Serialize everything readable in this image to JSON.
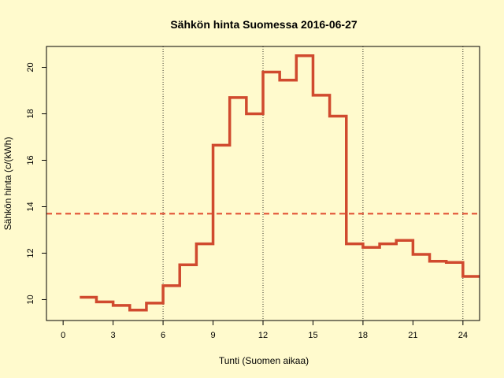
{
  "chart_data": {
    "type": "line",
    "step": true,
    "title": "Sähkön hinta Suomessa 2016-06-27",
    "xlabel": "Tunti (Suomen aikaa)",
    "ylabel": "Sähkön hinta (c/(kWh)",
    "xlim": [
      -1,
      25
    ],
    "ylim": [
      9.1,
      20.9
    ],
    "x_ticks": [
      0,
      3,
      6,
      9,
      12,
      15,
      18,
      21,
      24
    ],
    "y_ticks": [
      10,
      12,
      14,
      16,
      18,
      20
    ],
    "vertical_grid_at": [
      6,
      12,
      18,
      24
    ],
    "series": [
      {
        "x": [
          1,
          2,
          3,
          4,
          5,
          6,
          7,
          8,
          9,
          10,
          11,
          12,
          13,
          14,
          15,
          16,
          17,
          18,
          19,
          20,
          21,
          22,
          23,
          24
        ],
        "values": [
          10.1,
          9.9,
          9.75,
          9.55,
          9.85,
          10.6,
          11.5,
          12.4,
          16.65,
          18.7,
          18.0,
          19.8,
          19.45,
          20.5,
          18.8,
          17.9,
          12.4,
          12.25,
          12.4,
          12.55,
          11.95,
          11.65,
          11.6,
          11.0
        ],
        "color": "#d04a2e"
      }
    ],
    "reference_line": {
      "y": 13.7,
      "style": "dashed",
      "color": "#e04a2e"
    }
  }
}
